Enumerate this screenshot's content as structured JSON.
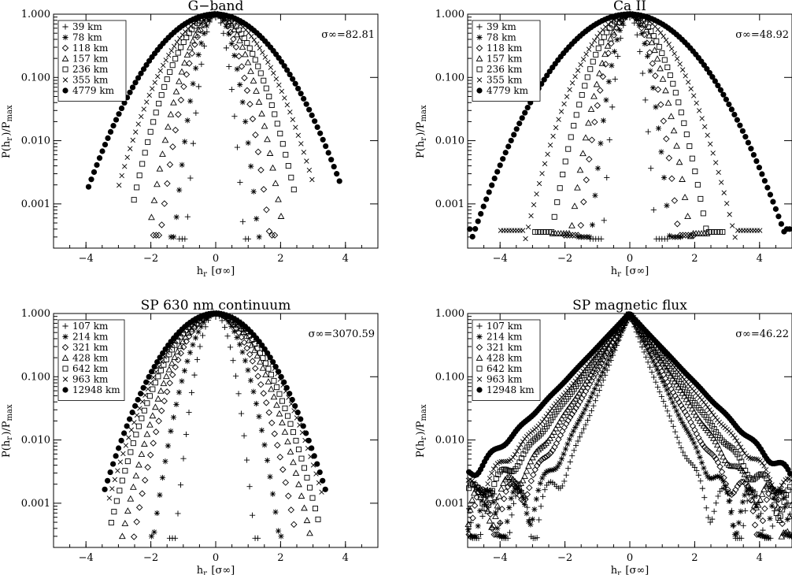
{
  "chart_data": [
    {
      "type": "scatter",
      "title": "G−band",
      "xlabel": "h_r [σ∞]",
      "ylabel": "P(h_r)/P_max",
      "xlim": [
        -5,
        5
      ],
      "ylim": [
        0.0002,
        1.0
      ],
      "yscale": "log",
      "xticks": [
        "−4",
        "−2",
        "0",
        "2",
        "4"
      ],
      "yticks": [
        "0.001",
        "0.010",
        "0.100",
        "1.000"
      ],
      "annotation": "σ∞=82.81",
      "legend_position": "top-left",
      "series": [
        {
          "name": "39 km",
          "marker": "plus",
          "sigma": 0.22,
          "xmax": 1.1
        },
        {
          "name": "78 km",
          "marker": "asterisk",
          "sigma": 0.32,
          "xmax": 1.4
        },
        {
          "name": "118 km",
          "marker": "diamond",
          "sigma": 0.42,
          "xmax": 1.9
        },
        {
          "name": "157 km",
          "marker": "triangle",
          "sigma": 0.52,
          "xmax": 2.0
        },
        {
          "name": "236 km",
          "marker": "square",
          "sigma": 0.68,
          "xmax": 2.5
        },
        {
          "name": "355 km",
          "marker": "cross",
          "sigma": 0.85,
          "xmax": 3.0
        },
        {
          "name": "4779 km",
          "marker": "dot",
          "sigma": 1.1,
          "xmax": 3.9
        }
      ]
    },
    {
      "type": "scatter",
      "title": "Ca II",
      "xlabel": "h_r [σ∞]",
      "ylabel": "P(h_r)/P_max",
      "xlim": [
        -5,
        5
      ],
      "ylim": [
        0.0002,
        1.0
      ],
      "yscale": "log",
      "xticks": [
        "−4",
        "−2",
        "0",
        "2",
        "4"
      ],
      "yticks": [
        "0.001",
        "0.010",
        "0.100",
        "1.000"
      ],
      "annotation": "σ∞=48.92",
      "legend_position": "top-left",
      "series": [
        {
          "name": "39 km",
          "marker": "plus",
          "sigma": 0.2,
          "xmax": 1.2
        },
        {
          "name": "78 km",
          "marker": "asterisk",
          "sigma": 0.3,
          "xmax": 1.6
        },
        {
          "name": "118 km",
          "marker": "diamond",
          "sigma": 0.38,
          "xmax": 2.0
        },
        {
          "name": "157 km",
          "marker": "triangle",
          "sigma": 0.46,
          "xmax": 2.4
        },
        {
          "name": "236 km",
          "marker": "square",
          "sigma": 0.6,
          "xmax": 2.9
        },
        {
          "name": "355 km",
          "marker": "cross",
          "sigma": 0.8,
          "xmax": 4.0
        },
        {
          "name": "4779 km",
          "marker": "dot",
          "sigma": 1.2,
          "xmax": 5.0
        }
      ]
    },
    {
      "type": "scatter",
      "title": "SP 630 nm continuum",
      "xlabel": "h_r [σ∞]",
      "ylabel": "P(h_r)/P_max",
      "xlim": [
        -5,
        5
      ],
      "ylim": [
        0.0002,
        1.0
      ],
      "yscale": "log",
      "xticks": [
        "−4",
        "−2",
        "0",
        "2",
        "4"
      ],
      "yticks": [
        "0.001",
        "0.010",
        "0.100",
        "1.000"
      ],
      "annotation": "σ∞=3070.59",
      "legend_position": "top-left",
      "series": [
        {
          "name": "107 km",
          "marker": "plus",
          "sigma": 0.3,
          "xmax": 1.4
        },
        {
          "name": "214 km",
          "marker": "asterisk",
          "sigma": 0.48,
          "xmax": 2.0
        },
        {
          "name": "321 km",
          "marker": "diamond",
          "sigma": 0.62,
          "xmax": 2.5
        },
        {
          "name": "428 km",
          "marker": "triangle",
          "sigma": 0.72,
          "xmax": 2.9
        },
        {
          "name": "642 km",
          "marker": "square",
          "sigma": 0.82,
          "xmax": 3.2
        },
        {
          "name": "963 km",
          "marker": "cross",
          "sigma": 0.9,
          "xmax": 3.3
        },
        {
          "name": "12948 km",
          "marker": "dot",
          "sigma": 0.95,
          "xmax": 3.4
        }
      ]
    },
    {
      "type": "scatter",
      "title": "SP magnetic flux",
      "xlabel": "h_r [σ∞]",
      "ylabel": "P(h_r)/P_max",
      "xlim": [
        -5,
        5
      ],
      "ylim": [
        0.0002,
        1.0
      ],
      "yscale": "log",
      "xticks": [
        "−4",
        "−2",
        "0",
        "2",
        "4"
      ],
      "yticks": [
        "0.001",
        "0.010",
        "0.100",
        "1.000"
      ],
      "annotation": "σ∞=46.22",
      "legend_position": "top-left",
      "series": [
        {
          "name": "107 km",
          "marker": "plus",
          "sigma": 0.18,
          "xmax": 5.0
        },
        {
          "name": "214 km",
          "marker": "asterisk",
          "sigma": 0.22,
          "xmax": 5.0
        },
        {
          "name": "321 km",
          "marker": "diamond",
          "sigma": 0.26,
          "xmax": 5.0
        },
        {
          "name": "428 km",
          "marker": "triangle",
          "sigma": 0.3,
          "xmax": 5.0
        },
        {
          "name": "642 km",
          "marker": "square",
          "sigma": 0.34,
          "xmax": 5.0
        },
        {
          "name": "963 km",
          "marker": "cross",
          "sigma": 0.38,
          "xmax": 5.0
        },
        {
          "name": "12948 km",
          "marker": "dot",
          "sigma": 0.44,
          "xmax": 5.0
        }
      ]
    }
  ]
}
